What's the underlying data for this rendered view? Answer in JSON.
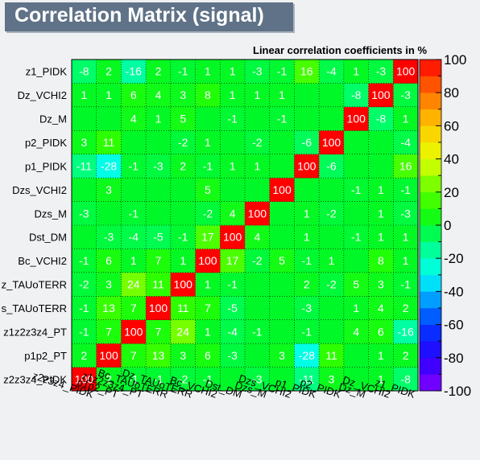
{
  "chart_data": {
    "type": "heatmap",
    "title": "Correlation Matrix (signal)",
    "subtitle": "Linear correlation coefficients in %",
    "variables": [
      "z2z3z4_PIDK",
      "p1p2_PT",
      "z1z2z3z4_PT",
      "Bc_TAUoTERR",
      "Dz_TAUoTERR",
      "Bc_VCHI2",
      "Dst_DM",
      "Dzs_M",
      "Dzs_VCHI2",
      "p1_PIDK",
      "p2_PIDK",
      "Dz_M",
      "Dz_VCHI2",
      "z1_PIDK"
    ],
    "y_tick_labels": [
      "z2z3z4_PIDK",
      "p1p2_PT",
      "z1z2z3z4_PT",
      "s_TAUoTERR",
      "z_TAUoTERR",
      "Bc_VCHI2",
      "Dst_DM",
      "Dzs_M",
      "Dzs_VCHI2",
      "p1_PIDK",
      "p2_PIDK",
      "Dz_M",
      "Dz_VCHI2",
      "z1_PIDK"
    ],
    "x_tick_labels": [
      "z2z3z4_PIDK",
      "p1p2_PT",
      "z1z2z3z4_PT",
      "Bc_TAUoTERR",
      "Dz_TAUoTERR",
      "Bc_VCHI2",
      "Dst_DM",
      "Dzs_M",
      "Dzs_VCHI2",
      "p1_PIDK",
      "p2_PIDK",
      "Dz_M",
      "Dz_VCHI2",
      "z1_PIDK"
    ],
    "values": [
      [
        100,
        2,
        -1,
        -1,
        -2,
        -1,
        0,
        -3,
        0,
        -11,
        3,
        0,
        1,
        -8
      ],
      [
        2,
        100,
        7,
        13,
        3,
        6,
        -3,
        0,
        3,
        -28,
        11,
        0,
        1,
        2
      ],
      [
        -1,
        7,
        100,
        7,
        24,
        1,
        -4,
        -1,
        0,
        -1,
        0,
        4,
        6,
        -16
      ],
      [
        -1,
        13,
        7,
        100,
        11,
        7,
        -5,
        0,
        0,
        -3,
        0,
        1,
        4,
        2
      ],
      [
        -2,
        3,
        24,
        11,
        100,
        1,
        -1,
        0,
        0,
        2,
        -2,
        5,
        3,
        -1
      ],
      [
        -1,
        6,
        1,
        7,
        1,
        100,
        17,
        -2,
        5,
        -1,
        1,
        0,
        8,
        1
      ],
      [
        0,
        -3,
        -4,
        -5,
        -1,
        17,
        100,
        4,
        0,
        1,
        0,
        -1,
        1,
        1
      ],
      [
        -3,
        0,
        -1,
        0,
        0,
        -2,
        4,
        100,
        0,
        1,
        -2,
        0,
        1,
        -3
      ],
      [
        0,
        3,
        0,
        0,
        0,
        5,
        0,
        0,
        100,
        0,
        0,
        -1,
        1,
        -1
      ],
      [
        -11,
        -28,
        -1,
        -3,
        2,
        -1,
        1,
        1,
        0,
        100,
        -6,
        0,
        0,
        16
      ],
      [
        3,
        11,
        0,
        0,
        -2,
        1,
        0,
        -2,
        0,
        -6,
        100,
        0,
        0,
        -4
      ],
      [
        0,
        0,
        4,
        1,
        5,
        0,
        -1,
        0,
        -1,
        0,
        0,
        100,
        -8,
        1
      ],
      [
        1,
        1,
        6,
        4,
        3,
        8,
        1,
        1,
        1,
        0,
        0,
        -8,
        100,
        -3
      ],
      [
        -8,
        2,
        -16,
        2,
        -1,
        1,
        1,
        -3,
        -1,
        16,
        -4,
        1,
        -3,
        100
      ]
    ],
    "zlim": [
      -100,
      100
    ],
    "colorbar_ticks": [
      100,
      80,
      60,
      40,
      20,
      0,
      -20,
      -40,
      -60,
      -80,
      -100
    ],
    "grid": true
  }
}
